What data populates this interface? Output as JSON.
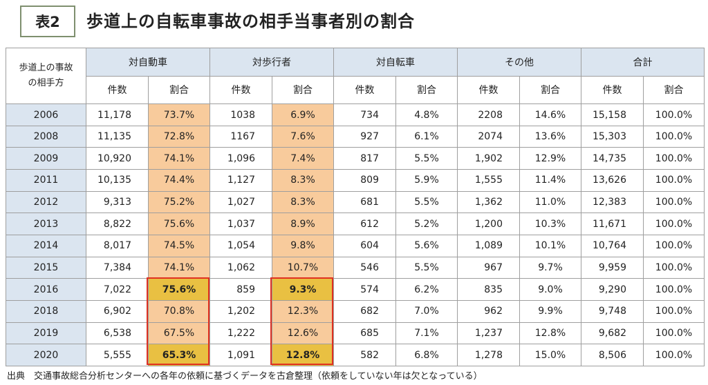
{
  "header": {
    "table_label": "表2",
    "title": "歩道上の自転車事故の相手当事者別の割合"
  },
  "table": {
    "corner_label": "歩道上の事故\nの相手方",
    "groups": [
      "対自動車",
      "対歩行者",
      "対自転車",
      "その他",
      "合計"
    ],
    "sub_headers": [
      "件数",
      "割合",
      "件数",
      "割合",
      "件数",
      "割合",
      "件数",
      "割合",
      "件数",
      "割合"
    ],
    "rows": [
      {
        "year": "2006",
        "cells": [
          "11,178",
          "73.7%",
          "1038",
          "6.9%",
          "734",
          "4.8%",
          "2208",
          "14.6%",
          "15,158",
          "100.0%"
        ]
      },
      {
        "year": "2008",
        "cells": [
          "11,135",
          "72.8%",
          "1167",
          "7.6%",
          "927",
          "6.1%",
          "2074",
          "13.6%",
          "15,303",
          "100.0%"
        ]
      },
      {
        "year": "2009",
        "cells": [
          "10,920",
          "74.1%",
          "1,096",
          "7.4%",
          "817",
          "5.5%",
          "1,902",
          "12.9%",
          "14,735",
          "100.0%"
        ]
      },
      {
        "year": "2011",
        "cells": [
          "10,135",
          "74.4%",
          "1,127",
          "8.3%",
          "809",
          "5.9%",
          "1,555",
          "11.4%",
          "13,626",
          "100.0%"
        ]
      },
      {
        "year": "2012",
        "cells": [
          "9,313",
          "75.2%",
          "1,027",
          "8.3%",
          "681",
          "5.5%",
          "1,362",
          "11.0%",
          "12,383",
          "100.0%"
        ]
      },
      {
        "year": "2013",
        "cells": [
          "8,822",
          "75.6%",
          "1,037",
          "8.9%",
          "612",
          "5.2%",
          "1,200",
          "10.3%",
          "11,671",
          "100.0%"
        ]
      },
      {
        "year": "2014",
        "cells": [
          "8,017",
          "74.5%",
          "1,054",
          "9.8%",
          "604",
          "5.6%",
          "1,089",
          "10.1%",
          "10,764",
          "100.0%"
        ]
      },
      {
        "year": "2015",
        "cells": [
          "7,384",
          "74.1%",
          "1,062",
          "10.7%",
          "546",
          "5.5%",
          "967",
          "9.7%",
          "9,959",
          "100.0%"
        ]
      },
      {
        "year": "2016",
        "cells": [
          "7,022",
          "75.6%",
          "859",
          "9.3%",
          "574",
          "6.2%",
          "835",
          "9.0%",
          "9,290",
          "100.0%"
        ]
      },
      {
        "year": "2018",
        "cells": [
          "6,902",
          "70.8%",
          "1,202",
          "12.3%",
          "682",
          "7.0%",
          "962",
          "9.9%",
          "9,748",
          "100.0%"
        ]
      },
      {
        "year": "2019",
        "cells": [
          "6,538",
          "67.5%",
          "1,222",
          "12.6%",
          "685",
          "7.1%",
          "1,237",
          "12.8%",
          "9,682",
          "100.0%"
        ]
      },
      {
        "year": "2020",
        "cells": [
          "5,555",
          "65.3%",
          "1,091",
          "12.8%",
          "582",
          "6.8%",
          "1,278",
          "15.0%",
          "8,506",
          "100.0%"
        ]
      }
    ],
    "highlight_colors": {
      "light": "#f8cb9c",
      "strong": "#e9c042",
      "header": "#dbe5f0",
      "frame": "#e03020"
    }
  },
  "footer": {
    "note": "出典　交通事故総合分析センターへの各年の依頼に基づくデータを古倉整理（依頼をしていない年は欠となっている）"
  }
}
